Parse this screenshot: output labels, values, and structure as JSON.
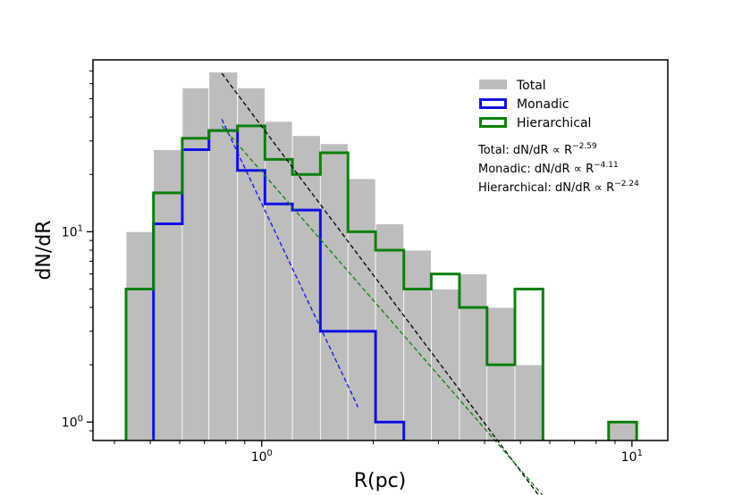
{
  "chart_data": {
    "type": "bar",
    "xlabel": "R(pc)",
    "ylabel": "dN/dR",
    "xscale": "log",
    "yscale": "log",
    "xlim": [
      0.35,
      12.5
    ],
    "ylim": [
      0.8,
      80
    ],
    "legend_position": "top-right",
    "x_tick_labels": [
      {
        "base": "10",
        "exp": "0"
      },
      {
        "base": "10",
        "exp": "1"
      }
    ],
    "y_tick_labels": [
      {
        "base": "10",
        "exp": "0"
      },
      {
        "base": "10",
        "exp": "1"
      }
    ],
    "bin_edges": [
      0.43,
      0.51,
      0.61,
      0.72,
      0.86,
      1.02,
      1.21,
      1.44,
      1.71,
      2.03,
      2.42,
      2.87,
      3.42,
      4.06,
      4.83,
      5.75,
      6.83,
      8.12,
      8.65,
      10.3
    ],
    "series": [
      {
        "name": "Total",
        "style": "filled",
        "color": "#bdbdbd",
        "values": [
          10,
          27,
          57,
          69,
          57,
          38,
          32,
          29,
          19,
          11,
          8,
          5,
          6,
          4,
          2,
          null,
          null,
          null,
          1
        ]
      },
      {
        "name": "Monadic",
        "style": "step",
        "color": "#1010e6",
        "values": [
          null,
          11,
          27,
          34,
          21,
          14,
          13,
          3,
          3,
          1,
          null,
          null,
          null,
          null,
          null,
          null,
          null,
          null,
          null
        ]
      },
      {
        "name": "Hierarchical",
        "style": "step",
        "color": "#0c800c",
        "values": [
          5,
          16,
          31,
          34,
          36,
          24,
          20,
          26,
          10,
          8,
          5,
          6,
          4,
          2,
          5,
          null,
          null,
          null,
          1
        ]
      }
    ],
    "fits": [
      {
        "series": "Total",
        "color": "#000000",
        "x_range": [
          0.78,
          5.75
        ],
        "y_start": 68,
        "slope": -2.59
      },
      {
        "series": "Monadic",
        "color": "#1010e6",
        "x_range": [
          0.78,
          1.82
        ],
        "y_start": 39,
        "slope": -4.11
      },
      {
        "series": "Hierarchical",
        "color": "#0c800c",
        "x_range": [
          0.78,
          5.75
        ],
        "y_start": 36,
        "slope": -2.24
      }
    ],
    "annotations": [
      {
        "prefix": "Total: dN/dR ∝ R",
        "exp": "−2.59"
      },
      {
        "prefix": "Monadic: dN/dR ∝ R",
        "exp": "−4.11"
      },
      {
        "prefix": "Hierarchical: dN/dR ∝ R",
        "exp": "−2.24"
      }
    ]
  }
}
